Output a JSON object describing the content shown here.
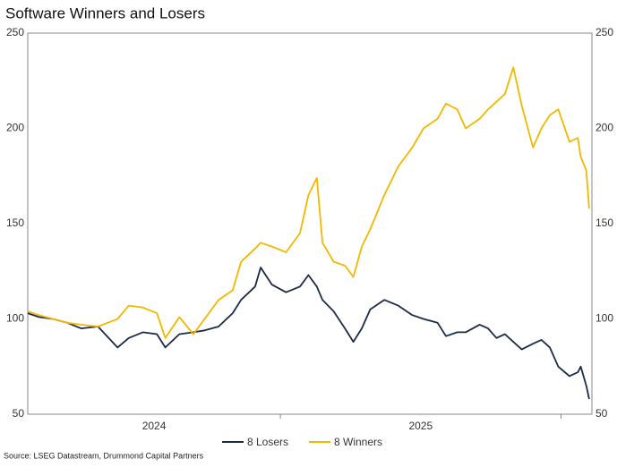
{
  "chart_data": {
    "type": "line",
    "title": "Software Winners and Losers",
    "source": "Source: LSEG Datastream, Drummond Capital Partners",
    "x": [
      2024.1,
      2024.14,
      2024.19,
      2024.24,
      2024.29,
      2024.35,
      2024.42,
      2024.46,
      2024.51,
      2024.56,
      2024.59,
      2024.64,
      2024.69,
      2024.73,
      2024.78,
      2024.83,
      2024.86,
      2024.91,
      2024.93,
      2024.97,
      2025.02,
      2025.07,
      2025.1,
      2025.13,
      2025.15,
      2025.19,
      2025.23,
      2025.26,
      2025.29,
      2025.32,
      2025.37,
      2025.42,
      2025.47,
      2025.51,
      2025.56,
      2025.59,
      2025.63,
      2025.66,
      2025.71,
      2025.74,
      2025.77,
      2025.8,
      2025.83,
      2025.86,
      2025.9,
      2025.93,
      2025.96,
      2025.99,
      2026.03,
      2026.06,
      2026.07,
      2026.09,
      2026.1
    ],
    "series": [
      {
        "name": "8 Losers",
        "color": "#1b2a47",
        "values": [
          103,
          101,
          100,
          98,
          95,
          96,
          85,
          90,
          93,
          92,
          85,
          92,
          93,
          94,
          96,
          103,
          110,
          117,
          127,
          118,
          114,
          117,
          123,
          117,
          110,
          104,
          95,
          88,
          95,
          105,
          110,
          107,
          102,
          100,
          98,
          91,
          93,
          93,
          97,
          95,
          90,
          92,
          88,
          84,
          87,
          89,
          85,
          75,
          70,
          72,
          75,
          65,
          58
        ]
      },
      {
        "name": "8 Winners",
        "color": "#f2b800",
        "values": [
          104,
          102,
          100,
          98,
          97,
          96,
          100,
          107,
          106,
          103,
          90,
          101,
          92,
          100,
          110,
          115,
          130,
          137,
          140,
          138,
          135,
          145,
          165,
          174,
          140,
          130,
          128,
          122,
          138,
          147,
          165,
          180,
          190,
          200,
          205,
          213,
          210,
          200,
          205,
          210,
          214,
          218,
          232,
          212,
          190,
          200,
          207,
          210,
          193,
          195,
          185,
          178,
          158
        ]
      }
    ],
    "xlim": [
      2024.1,
      2026.11
    ],
    "xticks": [
      {
        "value": 2024.55,
        "label": "2024"
      },
      {
        "value": 2025.5,
        "label": "2025"
      }
    ],
    "xtick_marks": [
      2025,
      2026
    ],
    "ylim": [
      50,
      250
    ],
    "yticks": [
      50,
      100,
      150,
      200,
      250
    ],
    "y2lim": [
      50,
      250
    ],
    "y2ticks": [
      50,
      100,
      150,
      200,
      250
    ]
  }
}
